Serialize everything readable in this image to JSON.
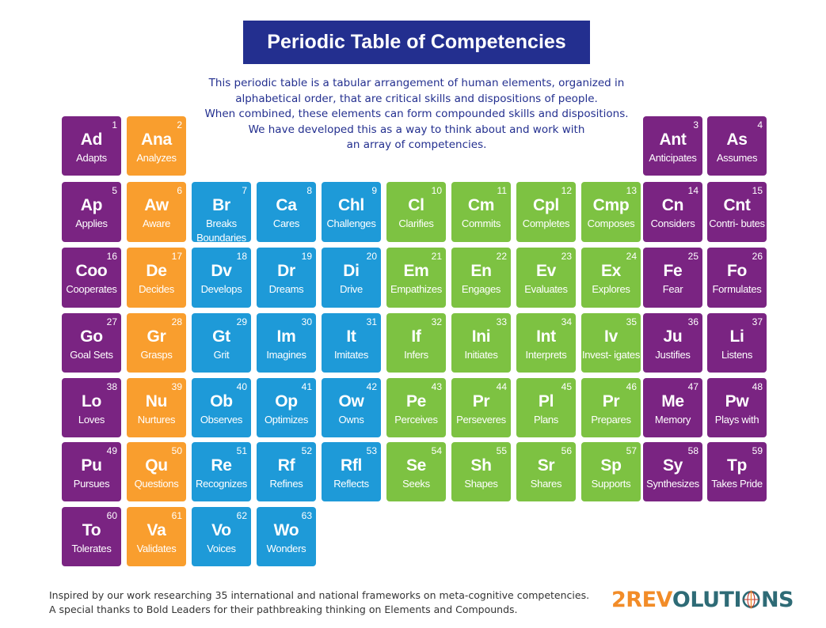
{
  "title": "Periodic Table of Competencies",
  "intro_lines": [
    "This periodic table is a tabular arrangement of human elements, organized in",
    "alphabetical order, that are critical skills and dispositions of people.",
    "When combined, these elements can form compounded skills and dispositions.",
    "We have developed this as a way to think about and work with",
    "an array of competencies."
  ],
  "colors": {
    "purple": "#7a2482",
    "orange": "#f99e2e",
    "blue": "#1e9ad8",
    "green": "#7dc242",
    "title_bg": "#232f8f"
  },
  "elements": [
    {
      "n": "1",
      "sym": "Ad",
      "name": "Adapts",
      "color": "purple"
    },
    {
      "n": "2",
      "sym": "Ana",
      "name": "Analyzes",
      "color": "orange"
    },
    {
      "n": "3",
      "sym": "Ant",
      "name": "Anticipates",
      "color": "purple"
    },
    {
      "n": "4",
      "sym": "As",
      "name": "Assumes",
      "color": "purple"
    },
    {
      "n": "5",
      "sym": "Ap",
      "name": "Applies",
      "color": "purple"
    },
    {
      "n": "6",
      "sym": "Aw",
      "name": "Aware",
      "color": "orange"
    },
    {
      "n": "7",
      "sym": "Br",
      "name": "Breaks Boundaries",
      "color": "blue"
    },
    {
      "n": "8",
      "sym": "Ca",
      "name": "Cares",
      "color": "blue"
    },
    {
      "n": "9",
      "sym": "Chl",
      "name": "Challenges",
      "color": "blue"
    },
    {
      "n": "10",
      "sym": "Cl",
      "name": "Clarifies",
      "color": "green"
    },
    {
      "n": "11",
      "sym": "Cm",
      "name": "Commits",
      "color": "green"
    },
    {
      "n": "12",
      "sym": "Cpl",
      "name": "Completes",
      "color": "green"
    },
    {
      "n": "13",
      "sym": "Cmp",
      "name": "Composes",
      "color": "green"
    },
    {
      "n": "14",
      "sym": "Cn",
      "name": "Considers",
      "color": "purple"
    },
    {
      "n": "15",
      "sym": "Cnt",
      "name": "Contri- butes",
      "color": "purple"
    },
    {
      "n": "16",
      "sym": "Coo",
      "name": "Cooperates",
      "color": "purple"
    },
    {
      "n": "17",
      "sym": "De",
      "name": "Decides",
      "color": "orange"
    },
    {
      "n": "18",
      "sym": "Dv",
      "name": "Develops",
      "color": "blue"
    },
    {
      "n": "19",
      "sym": "Dr",
      "name": "Dreams",
      "color": "blue"
    },
    {
      "n": "20",
      "sym": "Di",
      "name": "Drive",
      "color": "blue"
    },
    {
      "n": "21",
      "sym": "Em",
      "name": "Empathizes",
      "color": "green"
    },
    {
      "n": "22",
      "sym": "En",
      "name": "Engages",
      "color": "green"
    },
    {
      "n": "23",
      "sym": "Ev",
      "name": "Evaluates",
      "color": "green"
    },
    {
      "n": "24",
      "sym": "Ex",
      "name": "Explores",
      "color": "green"
    },
    {
      "n": "25",
      "sym": "Fe",
      "name": "Fear",
      "color": "purple"
    },
    {
      "n": "26",
      "sym": "Fo",
      "name": "Formulates",
      "color": "purple"
    },
    {
      "n": "27",
      "sym": "Go",
      "name": "Goal Sets",
      "color": "purple"
    },
    {
      "n": "28",
      "sym": "Gr",
      "name": "Grasps",
      "color": "orange"
    },
    {
      "n": "29",
      "sym": "Gt",
      "name": "Grit",
      "color": "blue"
    },
    {
      "n": "30",
      "sym": "Im",
      "name": "Imagines",
      "color": "blue"
    },
    {
      "n": "31",
      "sym": "It",
      "name": "Imitates",
      "color": "blue"
    },
    {
      "n": "32",
      "sym": "If",
      "name": "Infers",
      "color": "green"
    },
    {
      "n": "33",
      "sym": "Ini",
      "name": "Initiates",
      "color": "green"
    },
    {
      "n": "34",
      "sym": "Int",
      "name": "Interprets",
      "color": "green"
    },
    {
      "n": "35",
      "sym": "Iv",
      "name": "Invest- igates",
      "color": "green"
    },
    {
      "n": "36",
      "sym": "Ju",
      "name": "Justifies",
      "color": "purple"
    },
    {
      "n": "37",
      "sym": "Li",
      "name": "Listens",
      "color": "purple"
    },
    {
      "n": "38",
      "sym": "Lo",
      "name": "Loves",
      "color": "purple"
    },
    {
      "n": "39",
      "sym": "Nu",
      "name": "Nurtures",
      "color": "orange"
    },
    {
      "n": "40",
      "sym": "Ob",
      "name": "Observes",
      "color": "blue"
    },
    {
      "n": "41",
      "sym": "Op",
      "name": "Optimizes",
      "color": "blue"
    },
    {
      "n": "42",
      "sym": "Ow",
      "name": "Owns",
      "color": "blue"
    },
    {
      "n": "43",
      "sym": "Pe",
      "name": "Perceives",
      "color": "green"
    },
    {
      "n": "44",
      "sym": "Pr",
      "name": "Perseveres",
      "color": "green"
    },
    {
      "n": "45",
      "sym": "Pl",
      "name": "Plans",
      "color": "green"
    },
    {
      "n": "46",
      "sym": "Pr",
      "name": "Prepares",
      "color": "green"
    },
    {
      "n": "47",
      "sym": "Me",
      "name": "Memory",
      "color": "purple"
    },
    {
      "n": "48",
      "sym": "Pw",
      "name": "Plays with",
      "color": "purple"
    },
    {
      "n": "49",
      "sym": "Pu",
      "name": "Pursues",
      "color": "purple"
    },
    {
      "n": "50",
      "sym": "Qu",
      "name": "Questions",
      "color": "orange"
    },
    {
      "n": "51",
      "sym": "Re",
      "name": "Recognizes",
      "color": "blue"
    },
    {
      "n": "52",
      "sym": "Rf",
      "name": "Refines",
      "color": "blue"
    },
    {
      "n": "53",
      "sym": "Rfl",
      "name": "Reflects",
      "color": "blue"
    },
    {
      "n": "54",
      "sym": "Se",
      "name": "Seeks",
      "color": "green"
    },
    {
      "n": "55",
      "sym": "Sh",
      "name": "Shapes",
      "color": "green"
    },
    {
      "n": "56",
      "sym": "Sr",
      "name": "Shares",
      "color": "green"
    },
    {
      "n": "57",
      "sym": "Sp",
      "name": "Supports",
      "color": "green"
    },
    {
      "n": "58",
      "sym": "Sy",
      "name": "Synthesizes",
      "color": "purple"
    },
    {
      "n": "59",
      "sym": "Tp",
      "name": "Takes Pride",
      "color": "purple"
    },
    {
      "n": "60",
      "sym": "To",
      "name": "Tolerates",
      "color": "purple"
    },
    {
      "n": "61",
      "sym": "Va",
      "name": "Validates",
      "color": "orange"
    },
    {
      "n": "62",
      "sym": "Vo",
      "name": "Voices",
      "color": "blue"
    },
    {
      "n": "63",
      "sym": "Wo",
      "name": "Wonders",
      "color": "blue"
    }
  ],
  "footer_lines": [
    "Inspired by our work researching 35 international and national frameworks on meta-cognitive competencies.",
    "A special thanks to Bold Leaders for their pathbreaking thinking on Elements and Compounds."
  ],
  "logo": {
    "part1": "2REV",
    "part2": "OLUTI",
    "part3": "NS",
    "icon": "globe-icon"
  }
}
